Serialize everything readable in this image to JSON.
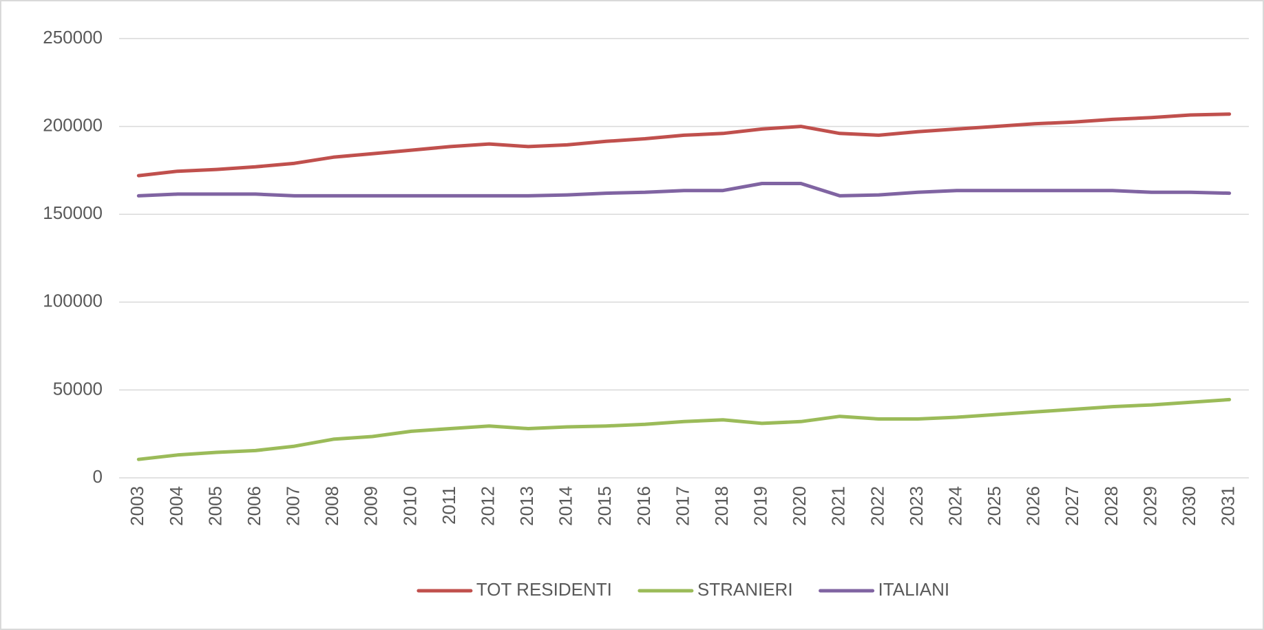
{
  "chart_data": {
    "type": "line",
    "categories": [
      "2003",
      "2004",
      "2005",
      "2006",
      "2007",
      "2008",
      "2009",
      "2010",
      "2011",
      "2012",
      "2013",
      "2014",
      "2015",
      "2016",
      "2017",
      "2018",
      "2019",
      "2020",
      "2021",
      "2022",
      "2023",
      "2024",
      "2025",
      "2026",
      "2027",
      "2028",
      "2029",
      "2030",
      "2031"
    ],
    "series": [
      {
        "name": "TOT RESIDENTI",
        "color": "#c0504d",
        "values": [
          172000,
          174500,
          175500,
          177000,
          179000,
          182500,
          184500,
          186500,
          188500,
          190000,
          188500,
          189500,
          191500,
          193000,
          195000,
          196000,
          198500,
          200000,
          196000,
          195000,
          197000,
          198500,
          200000,
          201500,
          202500,
          204000,
          205000,
          206500,
          207000
        ]
      },
      {
        "name": "STRANIERI",
        "color": "#9bbb59",
        "values": [
          10500,
          13000,
          14500,
          15500,
          18000,
          22000,
          23500,
          26500,
          28000,
          29500,
          28000,
          29000,
          29500,
          30500,
          32000,
          33000,
          31000,
          32000,
          35000,
          33500,
          33500,
          34500,
          36000,
          37500,
          39000,
          40500,
          41500,
          43000,
          44500
        ]
      },
      {
        "name": "ITALIANI",
        "color": "#8064a2",
        "values": [
          160500,
          161500,
          161500,
          161500,
          160500,
          160500,
          160500,
          160500,
          160500,
          160500,
          160500,
          161000,
          162000,
          162500,
          163500,
          163500,
          167500,
          167500,
          160500,
          161000,
          162500,
          163500,
          163500,
          163500,
          163500,
          163500,
          162500,
          162500,
          162000
        ]
      }
    ],
    "ylim": [
      0,
      250000
    ],
    "yticks": [
      0,
      50000,
      100000,
      150000,
      200000,
      250000
    ],
    "grid": true,
    "legend": "bottom"
  }
}
